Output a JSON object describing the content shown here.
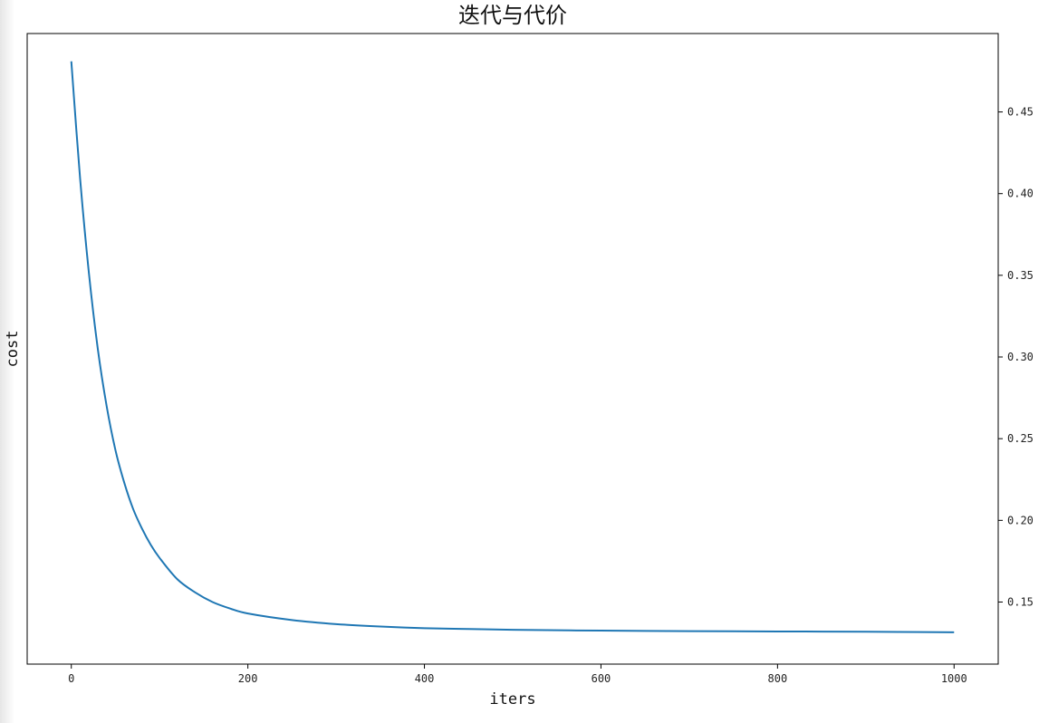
{
  "chart_data": {
    "type": "line",
    "title": "迭代与代价",
    "xlabel": "iters",
    "ylabel": "cost",
    "xlim": [
      -50,
      1050
    ],
    "ylim": [
      0.112,
      0.498
    ],
    "x_ticks": [
      0,
      200,
      400,
      600,
      800,
      1000
    ],
    "y_ticks": [
      0.15,
      0.2,
      0.25,
      0.3,
      0.35,
      0.4,
      0.45
    ],
    "y_tick_labels": [
      "0.15",
      "0.20",
      "0.25",
      "0.30",
      "0.35",
      "0.40",
      "0.45"
    ],
    "y_axis_side": "right",
    "grid": false,
    "legend": "none",
    "line_color": "#1f77b4",
    "series": [
      {
        "x": [
          0,
          10,
          20,
          30,
          40,
          50,
          60,
          70,
          80,
          90,
          100,
          120,
          140,
          160,
          180,
          200,
          250,
          300,
          350,
          400,
          450,
          500,
          600,
          700,
          800,
          900,
          1000
        ],
        "values": [
          0.481,
          0.409,
          0.351,
          0.305,
          0.27,
          0.243,
          0.223,
          0.207,
          0.195,
          0.185,
          0.177,
          0.164,
          0.156,
          0.15,
          0.146,
          0.143,
          0.139,
          0.1365,
          0.135,
          0.134,
          0.1335,
          0.133,
          0.1325,
          0.1322,
          0.132,
          0.1318,
          0.1315
        ]
      }
    ]
  }
}
